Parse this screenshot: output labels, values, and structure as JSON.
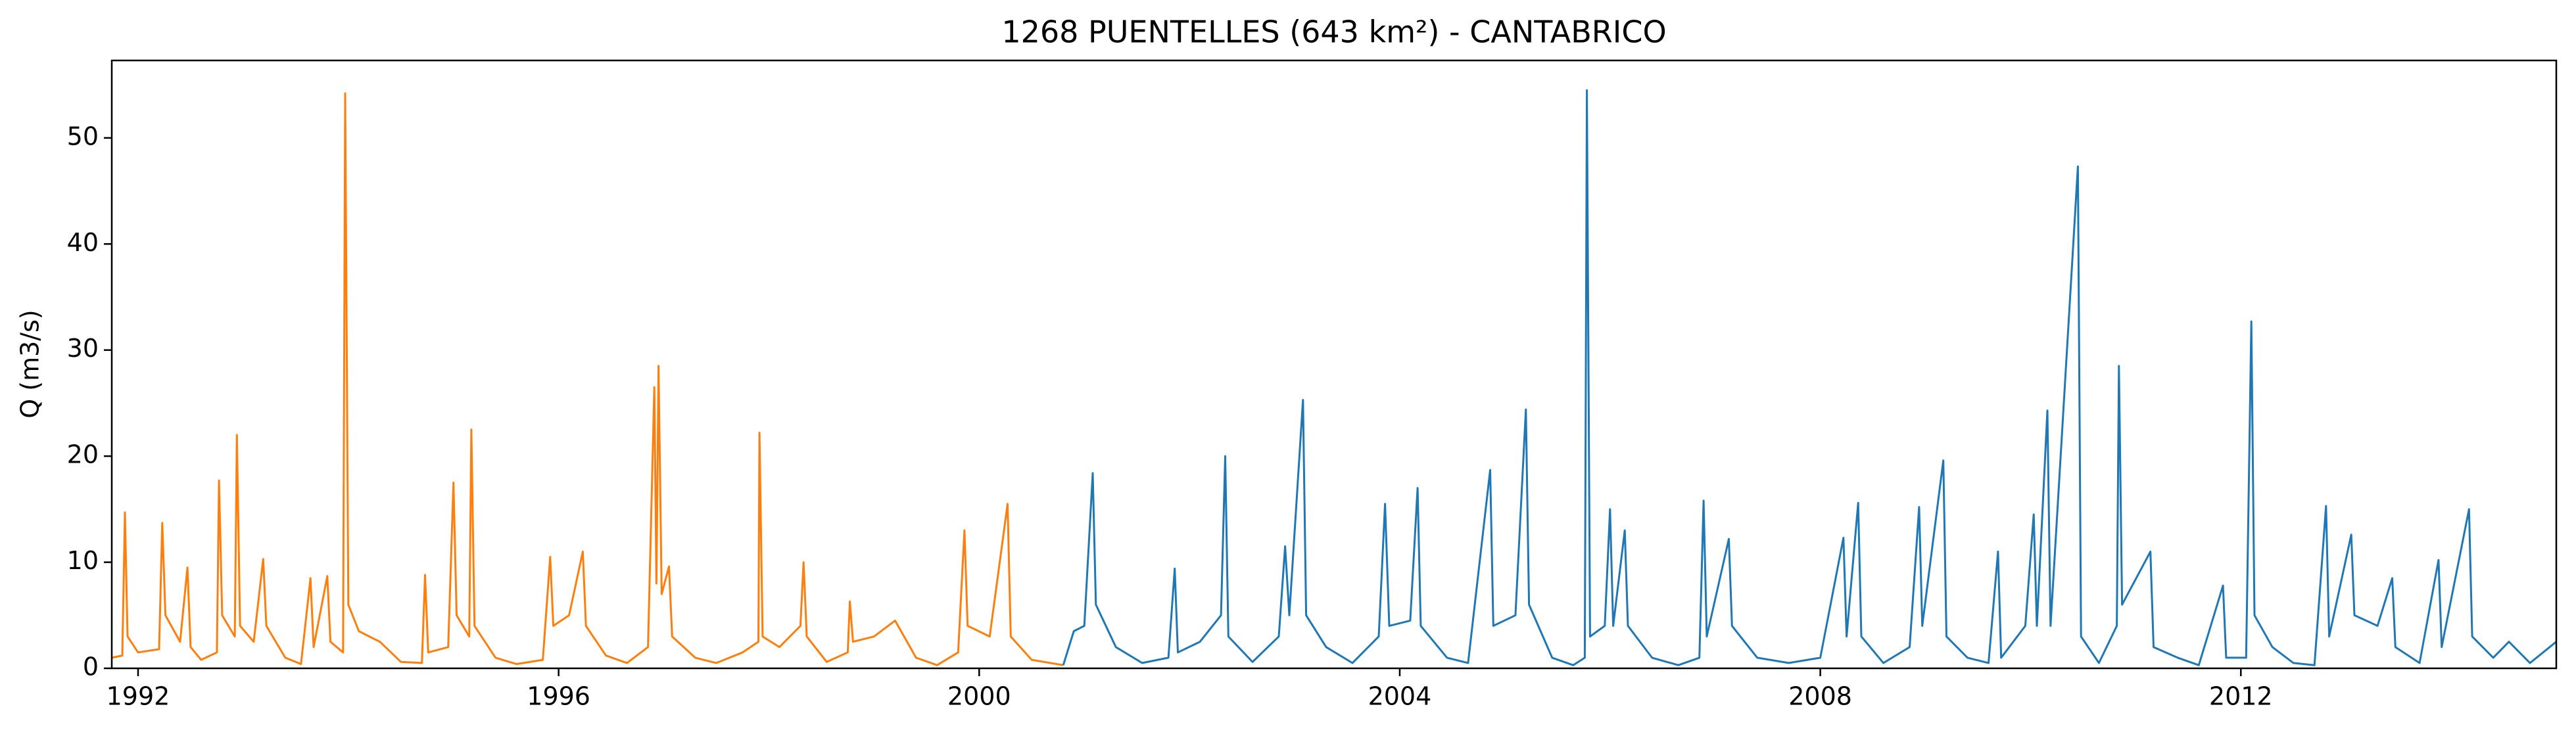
{
  "chart_data": {
    "type": "line",
    "title": "1268 PUENTELLES (643 km²) - CANTABRICO",
    "y_label": "Q (m3/s)",
    "xlim": [
      1991.75,
      2015.0
    ],
    "xticks": [
      1992,
      1996,
      2000,
      2004,
      2008,
      2012
    ],
    "ylim": [
      0,
      57.3
    ],
    "yticks": [
      0,
      10,
      20,
      30,
      40,
      50
    ],
    "grid": false,
    "series": [
      {
        "color": "#ff7f0e",
        "x": [
          1991.75,
          1991.85,
          1991.875,
          1991.9,
          1992.0,
          1992.2,
          1992.23,
          1992.26,
          1992.4,
          1992.47,
          1992.5,
          1992.6,
          1992.75,
          1992.77,
          1992.8,
          1992.92,
          1992.94,
          1992.97,
          1993.1,
          1993.19,
          1993.22,
          1993.4,
          1993.55,
          1993.64,
          1993.67,
          1993.8,
          1993.83,
          1993.95,
          1993.97,
          1994.0,
          1994.1,
          1994.3,
          1994.5,
          1994.7,
          1994.73,
          1994.76,
          1994.95,
          1995.0,
          1995.03,
          1995.15,
          1995.17,
          1995.2,
          1995.4,
          1995.6,
          1995.85,
          1995.92,
          1995.95,
          1996.1,
          1996.23,
          1996.26,
          1996.45,
          1996.65,
          1996.85,
          1996.91,
          1996.93,
          1996.95,
          1996.98,
          1997.05,
          1997.08,
          1997.3,
          1997.5,
          1997.75,
          1997.9,
          1997.91,
          1997.94,
          1998.1,
          1998.3,
          1998.33,
          1998.36,
          1998.55,
          1998.75,
          1998.77,
          1998.8,
          1999.0,
          1999.2,
          1999.4,
          1999.6,
          1999.8,
          1999.86,
          1999.89,
          2000.1,
          2000.27,
          2000.3,
          2000.5,
          2000.8
        ],
        "values": [
          1.0,
          1.2,
          14.7,
          3.0,
          1.5,
          1.8,
          13.7,
          5.0,
          2.5,
          9.5,
          2.0,
          0.8,
          1.5,
          17.7,
          5.0,
          3.0,
          22.0,
          4.0,
          2.5,
          10.3,
          4.0,
          1.0,
          0.4,
          8.5,
          2.0,
          8.7,
          2.5,
          1.5,
          54.2,
          6.0,
          3.5,
          2.5,
          0.6,
          0.5,
          8.8,
          1.5,
          2.0,
          17.5,
          5.0,
          3.0,
          22.5,
          4.0,
          1.0,
          0.4,
          0.8,
          10.5,
          4.0,
          5.0,
          11.0,
          4.0,
          1.2,
          0.5,
          2.0,
          26.5,
          8.0,
          28.5,
          7.0,
          9.6,
          3.0,
          1.0,
          0.5,
          1.5,
          2.5,
          22.2,
          3.0,
          2.0,
          4.0,
          10.0,
          3.0,
          0.6,
          1.5,
          6.3,
          2.5,
          3.0,
          4.5,
          1.0,
          0.3,
          1.5,
          13.0,
          4.0,
          3.0,
          15.5,
          3.0,
          0.8,
          0.3
        ]
      },
      {
        "color": "#1f77b4",
        "x": [
          2000.8,
          2000.9,
          2001.0,
          2001.08,
          2001.11,
          2001.3,
          2001.55,
          2001.8,
          2001.86,
          2001.89,
          2002.1,
          2002.3,
          2002.34,
          2002.37,
          2002.6,
          2002.85,
          2002.91,
          2002.95,
          2003.08,
          2003.11,
          2003.3,
          2003.55,
          2003.8,
          2003.86,
          2003.9,
          2004.1,
          2004.17,
          2004.2,
          2004.45,
          2004.65,
          2004.86,
          2004.89,
          2005.1,
          2005.2,
          2005.23,
          2005.45,
          2005.65,
          2005.76,
          2005.78,
          2005.81,
          2005.95,
          2006.0,
          2006.03,
          2006.14,
          2006.17,
          2006.4,
          2006.65,
          2006.85,
          2006.89,
          2006.92,
          2007.13,
          2007.16,
          2007.4,
          2007.7,
          2008.0,
          2008.22,
          2008.25,
          2008.36,
          2008.39,
          2008.6,
          2008.85,
          2008.94,
          2008.97,
          2009.17,
          2009.2,
          2009.4,
          2009.6,
          2009.69,
          2009.72,
          2009.95,
          2010.03,
          2010.06,
          2010.16,
          2010.19,
          2010.45,
          2010.48,
          2010.65,
          2010.82,
          2010.84,
          2010.87,
          2011.14,
          2011.17,
          2011.4,
          2011.6,
          2011.83,
          2011.86,
          2012.05,
          2012.1,
          2012.13,
          2012.3,
          2012.5,
          2012.7,
          2012.81,
          2012.84,
          2013.05,
          2013.08,
          2013.3,
          2013.44,
          2013.47,
          2013.7,
          2013.88,
          2013.91,
          2014.17,
          2014.2,
          2014.4,
          2014.55,
          2014.75,
          2015.0
        ],
        "values": [
          0.3,
          3.5,
          4.0,
          18.4,
          6.0,
          2.0,
          0.5,
          1.0,
          9.4,
          1.5,
          2.5,
          5.0,
          20.0,
          3.0,
          0.6,
          3.0,
          11.5,
          5.0,
          25.3,
          5.0,
          2.0,
          0.5,
          3.0,
          15.5,
          4.0,
          4.5,
          17.0,
          4.0,
          1.0,
          0.5,
          18.7,
          4.0,
          5.0,
          24.4,
          6.0,
          1.0,
          0.3,
          1.0,
          54.5,
          3.0,
          4.0,
          15.0,
          4.0,
          13.0,
          4.0,
          1.0,
          0.3,
          1.0,
          15.8,
          3.0,
          12.2,
          4.0,
          1.0,
          0.5,
          1.0,
          12.3,
          3.0,
          15.6,
          3.0,
          0.5,
          2.0,
          15.2,
          4.0,
          19.6,
          3.0,
          1.0,
          0.5,
          11.0,
          1.0,
          4.0,
          14.5,
          4.0,
          24.3,
          4.0,
          47.3,
          3.0,
          0.5,
          4.0,
          28.5,
          6.0,
          11.0,
          2.0,
          1.0,
          0.3,
          7.8,
          1.0,
          1.0,
          32.7,
          5.0,
          2.0,
          0.5,
          0.3,
          15.3,
          3.0,
          12.6,
          5.0,
          4.0,
          8.5,
          2.0,
          0.5,
          10.2,
          2.0,
          15.0,
          3.0,
          1.0,
          2.5,
          0.5,
          2.5
        ]
      }
    ]
  }
}
